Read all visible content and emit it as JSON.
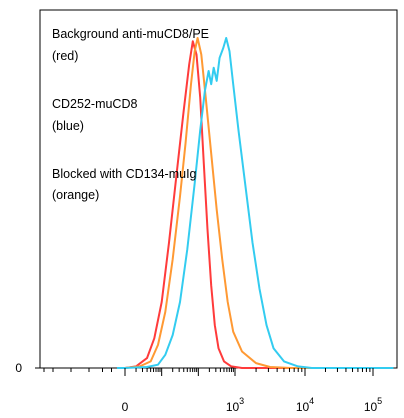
{
  "chart_data": {
    "type": "line",
    "title": "",
    "xlabel": "",
    "ylabel": "",
    "x_scale": "log",
    "grid": false,
    "y_tick_labels": [
      "0"
    ],
    "x_tick_labels": [
      {
        "base": "0",
        "exp": ""
      },
      {
        "base": "10",
        "exp": "3"
      },
      {
        "base": "10",
        "exp": "4"
      },
      {
        "base": "10",
        "exp": "5"
      }
    ],
    "annotations": [
      {
        "line1": "Background anti-muCD8/PE",
        "line2": "(red)"
      },
      {
        "line1": "CD252-muCD8",
        "line2": "(blue)"
      },
      {
        "line1": "Blocked with CD134-muIg",
        "line2": "(orange)"
      }
    ],
    "series": [
      {
        "color": "#ff3b3b",
        "points": [
          [
            -0.2,
            0
          ],
          [
            0,
            0
          ],
          [
            0.3,
            0.005
          ],
          [
            0.6,
            0.03
          ],
          [
            0.8,
            0.09
          ],
          [
            1.0,
            0.2
          ],
          [
            1.2,
            0.38
          ],
          [
            1.4,
            0.58
          ],
          [
            1.6,
            0.78
          ],
          [
            1.75,
            0.92
          ],
          [
            1.85,
            0.99
          ],
          [
            1.95,
            0.95
          ],
          [
            2.05,
            0.82
          ],
          [
            2.15,
            0.62
          ],
          [
            2.25,
            0.42
          ],
          [
            2.35,
            0.25
          ],
          [
            2.45,
            0.13
          ],
          [
            2.55,
            0.06
          ],
          [
            2.7,
            0.02
          ],
          [
            2.9,
            0.005
          ],
          [
            3.1,
            0
          ],
          [
            5.3,
            0
          ]
        ]
      },
      {
        "color": "#ff9933",
        "points": [
          [
            -0.2,
            0
          ],
          [
            0,
            0
          ],
          [
            0.4,
            0.005
          ],
          [
            0.7,
            0.02
          ],
          [
            0.9,
            0.07
          ],
          [
            1.1,
            0.17
          ],
          [
            1.3,
            0.33
          ],
          [
            1.5,
            0.52
          ],
          [
            1.65,
            0.68
          ],
          [
            1.8,
            0.86
          ],
          [
            1.9,
            0.96
          ],
          [
            1.98,
            1.0
          ],
          [
            2.08,
            0.95
          ],
          [
            2.2,
            0.82
          ],
          [
            2.35,
            0.65
          ],
          [
            2.5,
            0.48
          ],
          [
            2.65,
            0.33
          ],
          [
            2.8,
            0.2
          ],
          [
            2.95,
            0.11
          ],
          [
            3.1,
            0.05
          ],
          [
            3.3,
            0.015
          ],
          [
            3.5,
            0.003
          ],
          [
            3.8,
            0
          ],
          [
            5.3,
            0
          ]
        ]
      },
      {
        "color": "#33ccf0",
        "points": [
          [
            -0.2,
            0
          ],
          [
            0,
            0
          ],
          [
            0.6,
            0.003
          ],
          [
            0.9,
            0.01
          ],
          [
            1.1,
            0.04
          ],
          [
            1.3,
            0.1
          ],
          [
            1.5,
            0.2
          ],
          [
            1.7,
            0.36
          ],
          [
            1.9,
            0.56
          ],
          [
            2.05,
            0.72
          ],
          [
            2.18,
            0.84
          ],
          [
            2.28,
            0.9
          ],
          [
            2.35,
            0.86
          ],
          [
            2.42,
            0.91
          ],
          [
            2.5,
            0.87
          ],
          [
            2.58,
            0.94
          ],
          [
            2.68,
            0.97
          ],
          [
            2.76,
            1.0
          ],
          [
            2.85,
            0.96
          ],
          [
            2.95,
            0.86
          ],
          [
            3.05,
            0.72
          ],
          [
            3.15,
            0.55
          ],
          [
            3.25,
            0.38
          ],
          [
            3.35,
            0.24
          ],
          [
            3.45,
            0.13
          ],
          [
            3.55,
            0.06
          ],
          [
            3.7,
            0.02
          ],
          [
            3.9,
            0.005
          ],
          [
            4.1,
            0
          ],
          [
            5.3,
            0
          ]
        ]
      }
    ]
  }
}
